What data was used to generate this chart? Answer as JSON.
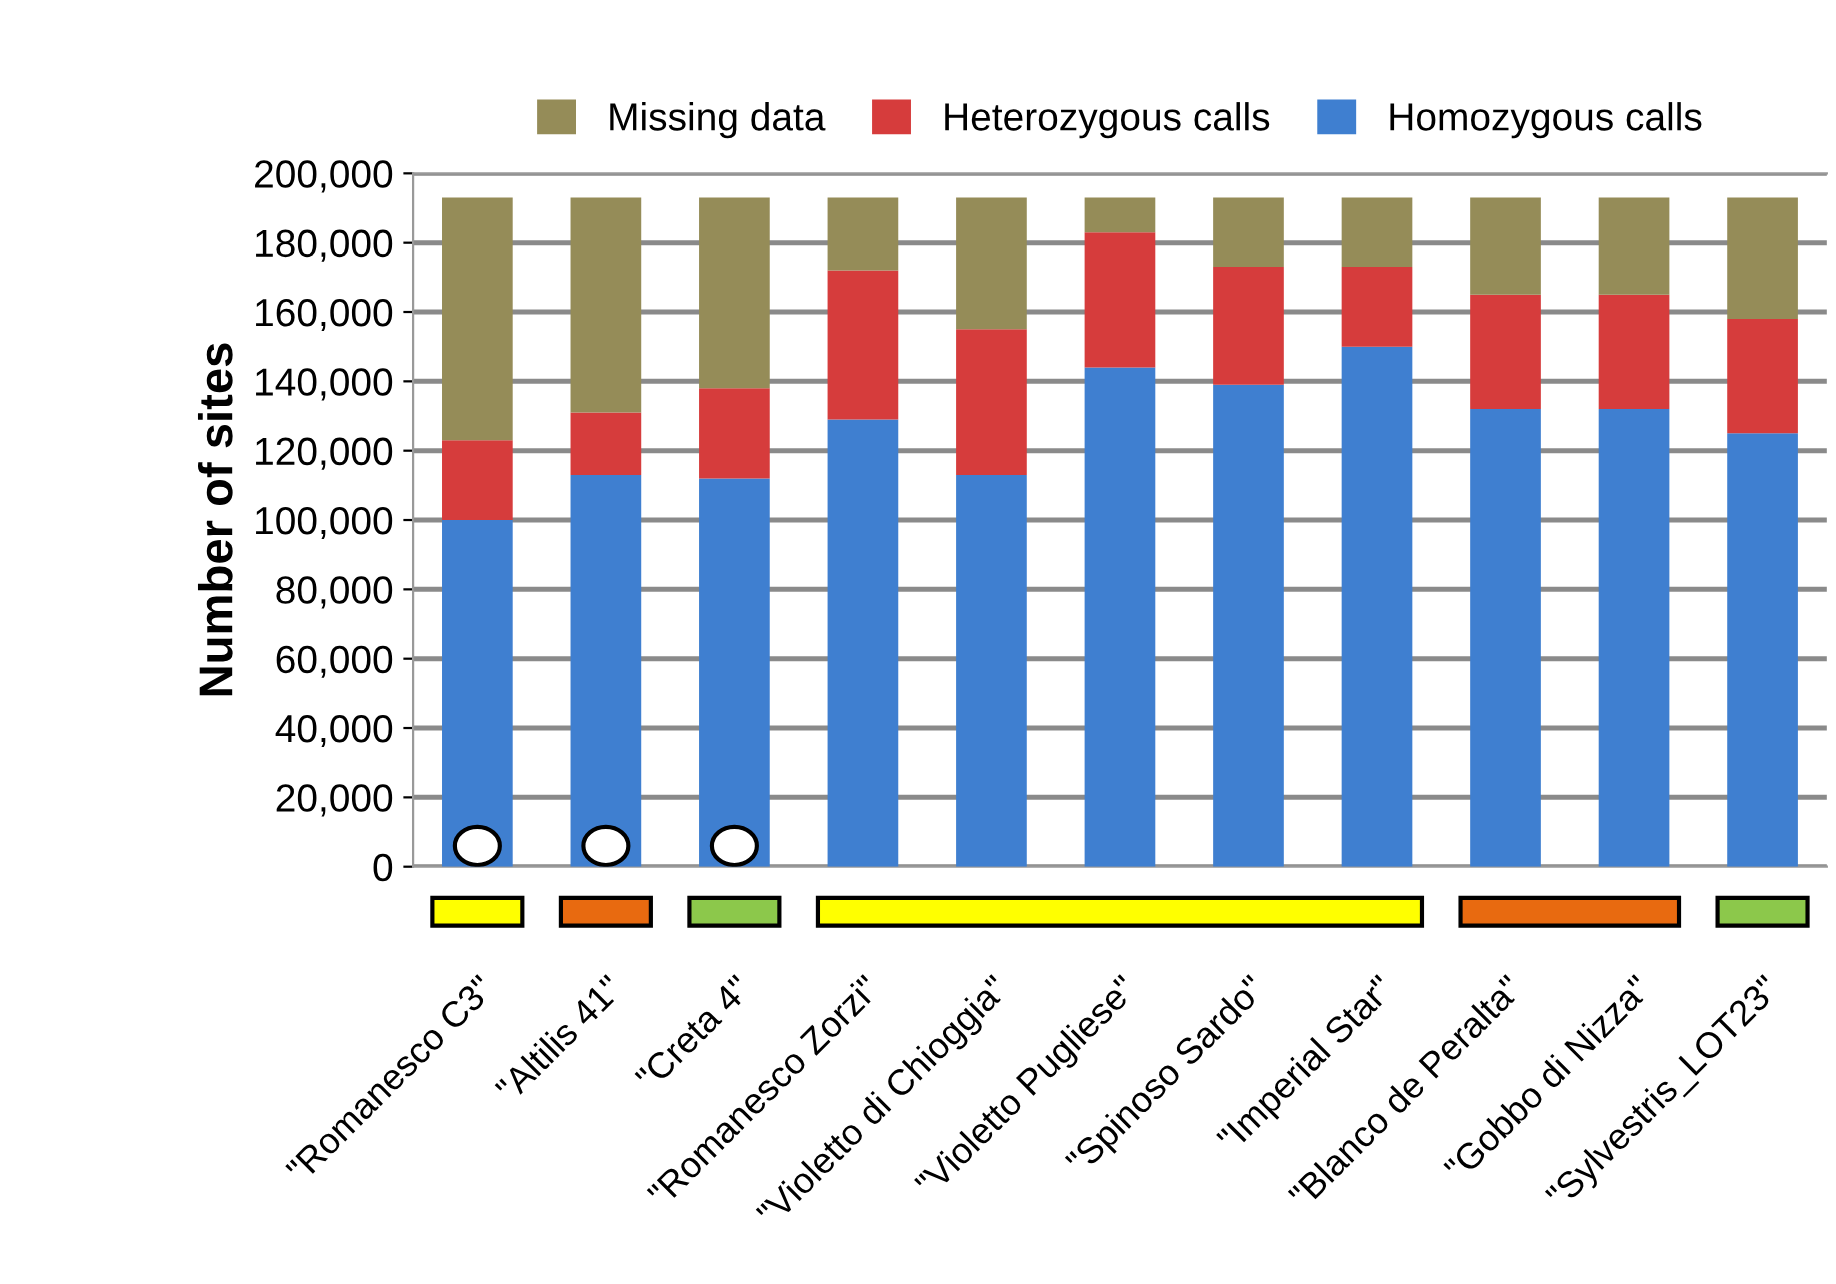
{
  "chart_data": {
    "type": "bar",
    "stacked": true,
    "ylabel": "Number of sites",
    "categories": [
      "\"Romanesco C3\"",
      "\"Altilis 41\"",
      "\"Creta 4\"",
      "\"Romanesco Zorzi\"",
      "\"Violetto di Chioggia\"",
      "\"Violetto Pugliese\"",
      "\"Spinoso Sardo\"",
      "\"Imperial Star\"",
      "\"Blanco de Peralta\"",
      "\"Gobbo di Nizza\"",
      "\"Sylvestris_LOT23\""
    ],
    "series": [
      {
        "name": "Homozygous calls",
        "color": "#3f7fd0",
        "values": [
          100000,
          113000,
          112000,
          129000,
          113000,
          144000,
          139000,
          150000,
          132000,
          132000,
          125000
        ]
      },
      {
        "name": "Heterozygous calls",
        "color": "#d63c3c",
        "values": [
          23000,
          18000,
          26000,
          43000,
          42000,
          39000,
          34000,
          23000,
          33000,
          33000,
          33000
        ]
      },
      {
        "name": "Missing data",
        "color": "#958c58",
        "values": [
          70000,
          62000,
          55000,
          21000,
          38000,
          10000,
          20000,
          20000,
          28000,
          28000,
          35000
        ]
      }
    ],
    "ylim": [
      0,
      200000
    ],
    "yticks": [
      {
        "value": 0,
        "label": "0"
      },
      {
        "value": 20000,
        "label": "20,000"
      },
      {
        "value": 40000,
        "label": "40,000"
      },
      {
        "value": 60000,
        "label": "60,000"
      },
      {
        "value": 80000,
        "label": "80,000"
      },
      {
        "value": 100000,
        "label": "100,000"
      },
      {
        "value": 120000,
        "label": "120,000"
      },
      {
        "value": 140000,
        "label": "140,000"
      },
      {
        "value": 160000,
        "label": "160,000"
      },
      {
        "value": 180000,
        "label": "180,000"
      },
      {
        "value": 200000,
        "label": "200,000"
      }
    ],
    "grid": "y",
    "legend": "top"
  }
}
